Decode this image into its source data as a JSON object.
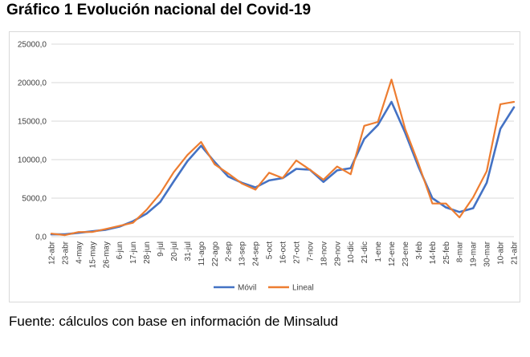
{
  "header": {
    "title": "Gráfico 1 Evolución nacional del Covid-19"
  },
  "footer": {
    "source": "Fuente: cálculos con base en información de Minsalud"
  },
  "colors": {
    "movil": "#4472c4",
    "lineal": "#ed7d31",
    "grid": "#d9d9d9",
    "axis_text": "#404040"
  },
  "chart_data": {
    "type": "line",
    "title": "",
    "xlabel": "",
    "ylabel": "",
    "ylim": [
      0,
      25000
    ],
    "yticks": [
      "0,0",
      "5000,0",
      "10000,0",
      "15000,0",
      "20000,0",
      "25000,0"
    ],
    "ytick_values": [
      0,
      5000,
      10000,
      15000,
      20000,
      25000
    ],
    "x": [
      "12-abr",
      "23-abr",
      "4-may",
      "15-may",
      "26-may",
      "6-jun",
      "17-jun",
      "28-jun",
      "9-jul",
      "20-jul",
      "31-jul",
      "11-ago",
      "22-ago",
      "2-sep",
      "13-sep",
      "24-sep",
      "5-oct",
      "16-oct",
      "27-oct",
      "7-nov",
      "18-nov",
      "29-nov",
      "10-dic",
      "21-dic",
      "1-ene",
      "12-ene",
      "23-ene",
      "3-feb",
      "14-feb",
      "25-feb",
      "8-mar",
      "19-mar",
      "30-mar",
      "10-abr",
      "21-abr"
    ],
    "legend": "bottom",
    "grid": true,
    "series": [
      {
        "name": "Móvil",
        "values": [
          300,
          300,
          500,
          700,
          900,
          1300,
          2000,
          3000,
          4500,
          7200,
          9800,
          11800,
          9700,
          7800,
          7000,
          6400,
          7300,
          7600,
          8800,
          8700,
          7100,
          8600,
          8900,
          12700,
          14500,
          17500,
          13500,
          9000,
          5000,
          3800,
          3200,
          3700,
          7000,
          14000,
          16800
        ]
      },
      {
        "name": "Lineal",
        "values": [
          400,
          200,
          600,
          600,
          1000,
          1400,
          1800,
          3500,
          5600,
          8400,
          10600,
          12300,
          9400,
          8200,
          6900,
          6100,
          8300,
          7600,
          9900,
          8700,
          7400,
          9100,
          8100,
          14400,
          14900,
          20400,
          14000,
          9400,
          4300,
          4300,
          2500,
          5100,
          8500,
          17200,
          17500
        ]
      }
    ]
  }
}
